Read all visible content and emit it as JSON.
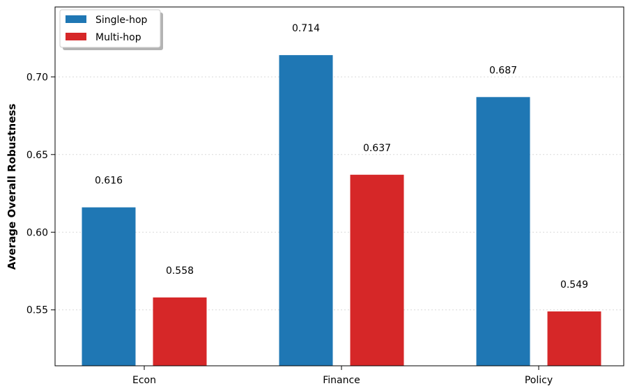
{
  "chart_data": {
    "type": "bar",
    "categories": [
      "Econ",
      "Finance",
      "Policy"
    ],
    "series": [
      {
        "name": "Single-hop",
        "color": "#1f77b4",
        "values": [
          0.616,
          0.714,
          0.687
        ]
      },
      {
        "name": "Multi-hop",
        "color": "#d62728",
        "values": [
          0.558,
          0.637,
          0.549
        ]
      }
    ],
    "value_labels": [
      [
        "0.616",
        "0.714",
        "0.687"
      ],
      [
        "0.558",
        "0.637",
        "0.549"
      ]
    ],
    "title": "",
    "xlabel": "",
    "ylabel": "Average Overall Robustness",
    "ylim": [
      0.514,
      0.745
    ],
    "yticks": [
      0.55,
      0.6,
      0.65,
      0.7
    ],
    "ytick_labels": [
      "0.55",
      "0.60",
      "0.65",
      "0.70"
    ],
    "grid": "horizontal dotted",
    "legend_position": "top-left"
  }
}
